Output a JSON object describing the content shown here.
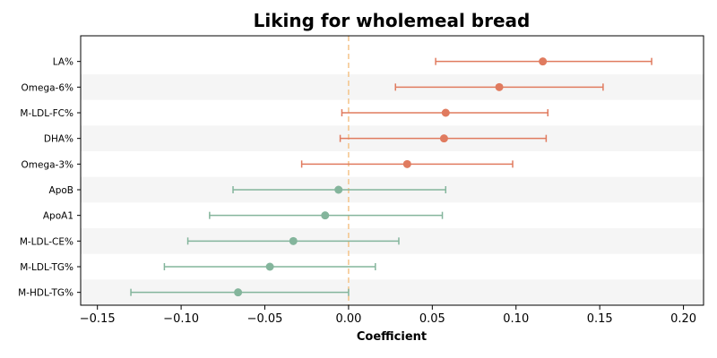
{
  "chart_data": {
    "type": "forest",
    "title": "Liking for wholemeal bread",
    "xlabel": "Coefficient",
    "ylabel": "",
    "xlim": [
      -0.16,
      0.212
    ],
    "xticks": [
      -0.15,
      -0.1,
      -0.05,
      0.0,
      0.05,
      0.1,
      0.15,
      0.2
    ],
    "xtick_labels": [
      "−0.15",
      "−0.10",
      "−0.05",
      "0.00",
      "0.05",
      "0.10",
      "0.15",
      "0.20"
    ],
    "reference_line": 0,
    "grid": false,
    "colors": {
      "positive": "#e07b5f",
      "negative": "#84b59c",
      "reference": "#f4c48a",
      "band": "#f5f5f5"
    },
    "rows": [
      {
        "label": "LA%",
        "coef": 0.116,
        "ci_low": 0.052,
        "ci_high": 0.181
      },
      {
        "label": "Omega-6%",
        "coef": 0.09,
        "ci_low": 0.028,
        "ci_high": 0.152
      },
      {
        "label": "M-LDL-FC%",
        "coef": 0.058,
        "ci_low": -0.004,
        "ci_high": 0.119
      },
      {
        "label": "DHA%",
        "coef": 0.057,
        "ci_low": -0.005,
        "ci_high": 0.118
      },
      {
        "label": "Omega-3%",
        "coef": 0.035,
        "ci_low": -0.028,
        "ci_high": 0.098
      },
      {
        "label": "ApoB",
        "coef": -0.006,
        "ci_low": -0.069,
        "ci_high": 0.058
      },
      {
        "label": "ApoA1",
        "coef": -0.014,
        "ci_low": -0.083,
        "ci_high": 0.056
      },
      {
        "label": "M-LDL-CE%",
        "coef": -0.033,
        "ci_low": -0.096,
        "ci_high": 0.03
      },
      {
        "label": "M-LDL-TG%",
        "coef": -0.047,
        "ci_low": -0.11,
        "ci_high": 0.016
      },
      {
        "label": "M-HDL-TG%",
        "coef": -0.066,
        "ci_low": -0.13,
        "ci_high": 0.0
      }
    ]
  }
}
